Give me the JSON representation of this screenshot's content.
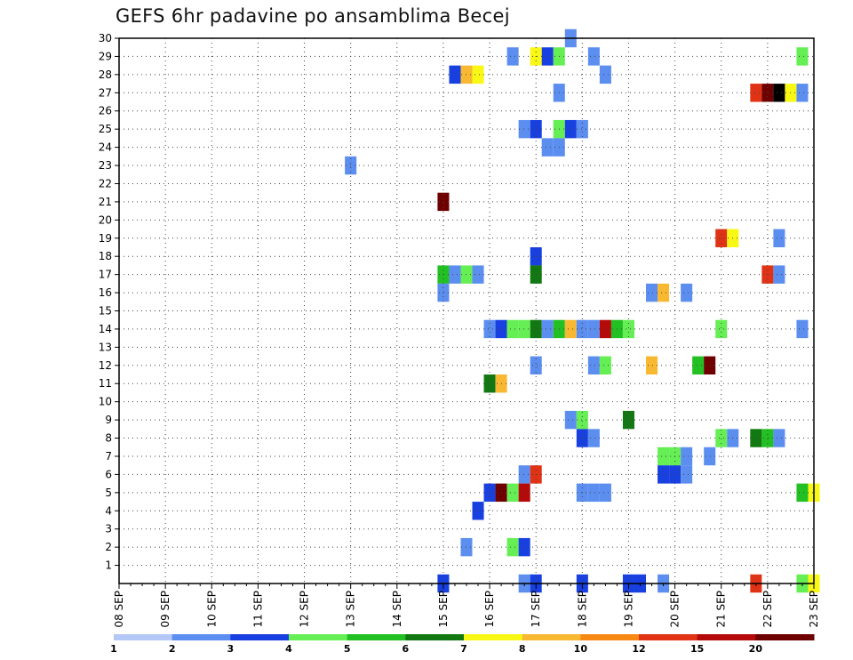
{
  "chart_data": {
    "type": "heatmap",
    "title": "GEFS 6hr padavine po ansamblima Becej",
    "xlabel": "",
    "ylabel": "",
    "x_ticks": [
      "08 SEP",
      "09 SEP",
      "10 SEP",
      "11 SEP",
      "12 SEP",
      "13 SEP",
      "14 SEP",
      "15 SEP",
      "16 SEP",
      "17 SEP",
      "18 SEP",
      "19 SEP",
      "20 SEP",
      "21 SEP",
      "22 SEP",
      "23 SEP"
    ],
    "y_ticks": [
      1,
      2,
      3,
      4,
      5,
      6,
      7,
      8,
      9,
      10,
      11,
      12,
      13,
      14,
      15,
      16,
      17,
      18,
      19,
      20,
      21,
      22,
      23,
      24,
      25,
      26,
      27,
      28,
      29,
      30
    ],
    "xlim": [
      0,
      60
    ],
    "ylim": [
      0,
      30
    ],
    "x_unit": "6-hour steps from 08 SEP 00Z",
    "grid": true,
    "colorbar": {
      "boundaries": [
        "1",
        "2",
        "3",
        "4",
        "5",
        "6",
        "7",
        "8",
        "10",
        "12",
        "15",
        "20"
      ],
      "colors": [
        "#b4c8f8",
        "#5c8ef0",
        "#1840e0",
        "#66ee55",
        "#22c022",
        "#127812",
        "#f8f814",
        "#f8b832",
        "#f88814",
        "#e03214",
        "#b40a0a",
        "#6e0000"
      ]
    },
    "cells": [
      [
        39,
        30,
        1
      ],
      [
        34,
        29,
        1
      ],
      [
        36,
        29,
        6
      ],
      [
        37,
        29,
        2
      ],
      [
        38,
        29,
        3
      ],
      [
        41,
        29,
        1
      ],
      [
        59,
        29,
        3
      ],
      [
        29,
        28,
        2
      ],
      [
        30,
        28,
        7
      ],
      [
        31,
        28,
        6
      ],
      [
        42,
        28,
        1
      ],
      [
        38,
        27,
        1
      ],
      [
        55,
        27,
        9
      ],
      [
        56,
        27,
        11
      ],
      [
        57,
        27,
        12
      ],
      [
        58,
        27,
        6
      ],
      [
        59,
        27,
        1
      ],
      [
        35,
        25,
        1
      ],
      [
        36,
        25,
        2
      ],
      [
        38,
        25,
        3
      ],
      [
        39,
        25,
        2
      ],
      [
        40,
        25,
        1
      ],
      [
        37,
        24,
        1
      ],
      [
        38,
        24,
        1
      ],
      [
        20,
        23,
        1
      ],
      [
        28,
        21,
        11
      ],
      [
        57,
        19,
        1
      ],
      [
        52,
        19,
        9
      ],
      [
        53,
        19,
        6
      ],
      [
        36,
        18,
        2
      ],
      [
        28,
        17,
        4
      ],
      [
        29,
        17,
        1
      ],
      [
        30,
        17,
        3
      ],
      [
        31,
        17,
        1
      ],
      [
        36,
        17,
        5
      ],
      [
        56,
        17,
        9
      ],
      [
        57,
        17,
        1
      ],
      [
        28,
        16,
        1
      ],
      [
        46,
        16,
        1
      ],
      [
        47,
        16,
        7
      ],
      [
        49,
        16,
        1
      ],
      [
        32,
        14,
        1
      ],
      [
        33,
        14,
        2
      ],
      [
        34,
        14,
        3
      ],
      [
        35,
        14,
        3
      ],
      [
        36,
        14,
        5
      ],
      [
        37,
        14,
        1
      ],
      [
        38,
        14,
        4
      ],
      [
        39,
        14,
        7
      ],
      [
        40,
        14,
        1
      ],
      [
        41,
        14,
        1
      ],
      [
        42,
        14,
        10
      ],
      [
        43,
        14,
        4
      ],
      [
        44,
        14,
        3
      ],
      [
        52,
        14,
        3
      ],
      [
        59,
        14,
        1
      ],
      [
        36,
        12,
        1
      ],
      [
        41,
        12,
        1
      ],
      [
        42,
        12,
        3
      ],
      [
        46,
        12,
        7
      ],
      [
        50,
        12,
        4
      ],
      [
        51,
        12,
        11
      ],
      [
        32,
        11,
        5
      ],
      [
        33,
        11,
        7
      ],
      [
        39,
        9,
        1
      ],
      [
        40,
        9,
        3
      ],
      [
        44,
        9,
        5
      ],
      [
        40,
        8,
        2
      ],
      [
        41,
        8,
        1
      ],
      [
        52,
        8,
        3
      ],
      [
        53,
        8,
        1
      ],
      [
        55,
        8,
        5
      ],
      [
        56,
        8,
        4
      ],
      [
        57,
        8,
        1
      ],
      [
        47,
        7,
        3
      ],
      [
        48,
        7,
        3
      ],
      [
        49,
        7,
        1
      ],
      [
        51,
        7,
        1
      ],
      [
        35,
        6,
        1
      ],
      [
        36,
        6,
        9
      ],
      [
        47,
        6,
        2
      ],
      [
        48,
        6,
        2
      ],
      [
        49,
        6,
        1
      ],
      [
        32,
        5,
        2
      ],
      [
        33,
        5,
        11
      ],
      [
        34,
        5,
        3
      ],
      [
        35,
        5,
        10
      ],
      [
        40,
        5,
        1
      ],
      [
        41,
        5,
        1
      ],
      [
        42,
        5,
        1
      ],
      [
        59,
        5,
        4
      ],
      [
        60,
        5,
        6
      ],
      [
        31,
        4,
        2
      ],
      [
        30,
        2,
        1
      ],
      [
        34,
        2,
        3
      ],
      [
        35,
        2,
        2
      ],
      [
        28,
        0,
        2
      ],
      [
        35,
        0,
        1
      ],
      [
        36,
        0,
        2
      ],
      [
        40,
        0,
        2
      ],
      [
        44,
        0,
        2
      ],
      [
        45,
        0,
        2
      ],
      [
        47,
        0,
        1
      ],
      [
        55,
        0,
        9
      ],
      [
        59,
        0,
        3
      ],
      [
        60,
        0,
        6
      ]
    ]
  }
}
